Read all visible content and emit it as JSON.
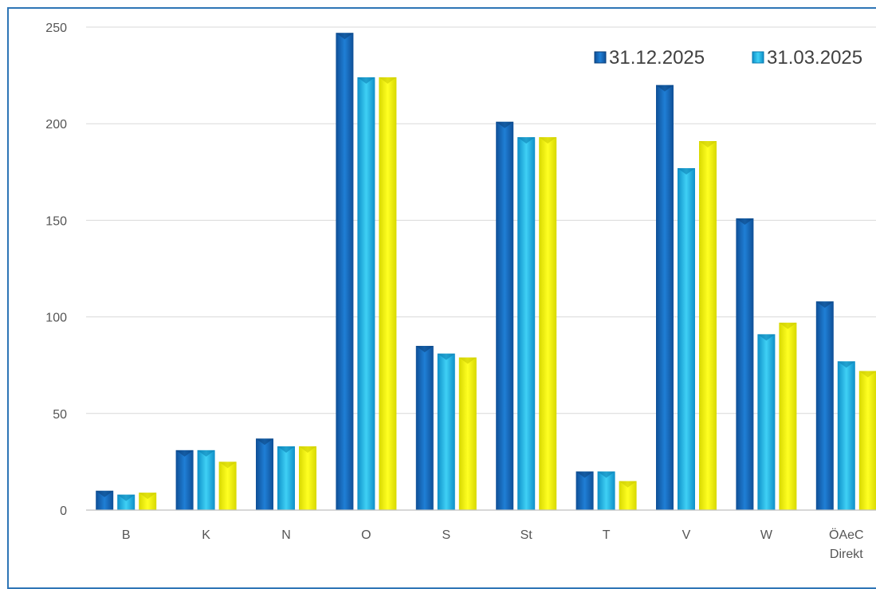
{
  "chart_data": {
    "type": "bar",
    "categories": [
      [
        "B"
      ],
      [
        "K"
      ],
      [
        "N"
      ],
      [
        "O"
      ],
      [
        "S"
      ],
      [
        "St"
      ],
      [
        "T"
      ],
      [
        "V"
      ],
      [
        "W"
      ],
      [
        "ÖAeC",
        "Direkt"
      ]
    ],
    "series": [
      {
        "name": "31.12.2025",
        "color": "#1f77c8",
        "values": [
          10,
          31,
          37,
          247,
          85,
          201,
          20,
          220,
          151,
          108
        ]
      },
      {
        "name": "31.03.2025",
        "color": "#1fb4e6",
        "values": [
          8,
          31,
          33,
          224,
          81,
          193,
          20,
          177,
          91,
          77
        ]
      },
      {
        "name": "",
        "color": "#ffff00",
        "values": [
          9,
          25,
          33,
          224,
          79,
          193,
          15,
          191,
          97,
          72
        ]
      }
    ],
    "ylim": [
      0,
      250
    ],
    "yticks": [
      0,
      50,
      100,
      150,
      200,
      250
    ],
    "grid": true,
    "legend_position": "top-right",
    "title": "",
    "xlabel": "",
    "ylabel": ""
  }
}
